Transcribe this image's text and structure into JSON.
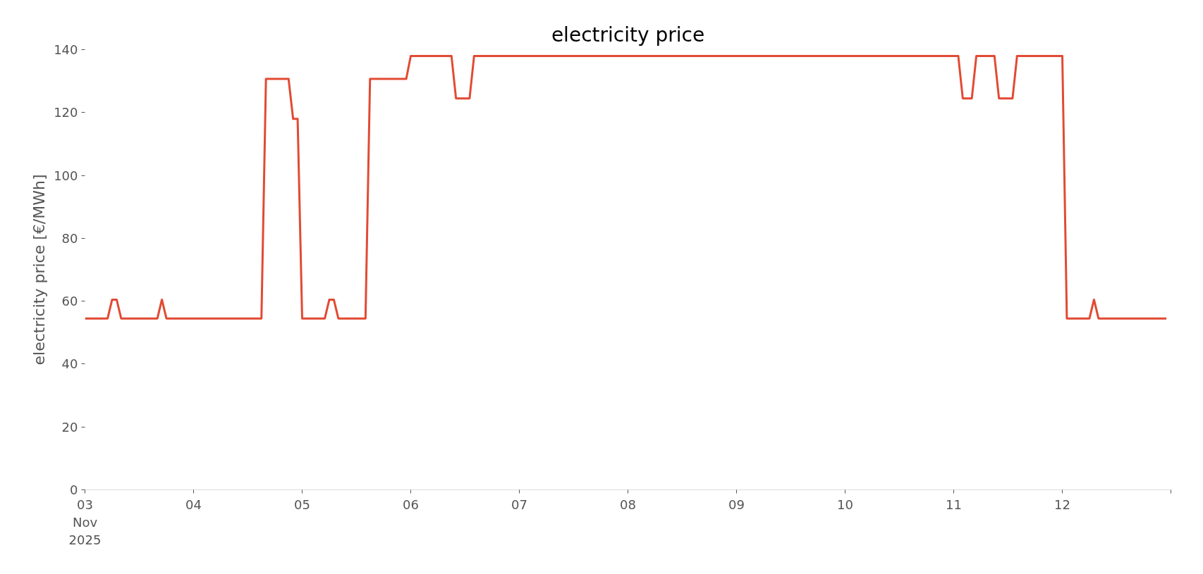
{
  "chart_data": {
    "type": "line",
    "title": "electricity price",
    "ylabel": "electricity price [€/MWh]",
    "x": [
      "2025-11-03T00:00",
      "2025-11-03T05:00",
      "2025-11-03T06:00",
      "2025-11-03T07:00",
      "2025-11-03T08:00",
      "2025-11-03T16:00",
      "2025-11-03T17:00",
      "2025-11-03T18:00",
      "2025-11-04T15:00",
      "2025-11-04T16:00",
      "2025-11-04T21:00",
      "2025-11-04T22:00",
      "2025-11-04T23:00",
      "2025-11-05T00:00",
      "2025-11-05T05:00",
      "2025-11-05T06:00",
      "2025-11-05T07:00",
      "2025-11-05T08:00",
      "2025-11-05T14:00",
      "2025-11-05T15:00",
      "2025-11-05T23:00",
      "2025-11-06T00:00",
      "2025-11-06T09:00",
      "2025-11-06T10:00",
      "2025-11-06T13:00",
      "2025-11-06T14:00",
      "2025-11-11T01:00",
      "2025-11-11T02:00",
      "2025-11-11T04:00",
      "2025-11-11T05:00",
      "2025-11-11T09:00",
      "2025-11-11T10:00",
      "2025-11-11T13:00",
      "2025-11-11T14:00",
      "2025-11-12T00:00",
      "2025-11-12T01:00",
      "2025-11-12T06:00",
      "2025-11-12T07:00",
      "2025-11-12T08:00",
      "2025-11-12T23:00"
    ],
    "series": [
      {
        "color": "#e24a33",
        "values": [
          54.5,
          54.5,
          60.5,
          60.5,
          54.5,
          54.5,
          60.5,
          54.5,
          54.5,
          130.7,
          130.7,
          118,
          118,
          54.5,
          54.5,
          60.5,
          60.5,
          54.5,
          54.5,
          130.7,
          130.7,
          138,
          138,
          124.5,
          124.5,
          138,
          138,
          124.5,
          124.5,
          138,
          138,
          124.5,
          124.5,
          138,
          138,
          54.5,
          54.5,
          60.5,
          54.5,
          54.5
        ]
      }
    ],
    "xlim": [
      "2025-11-03T00:00",
      "2025-11-13T00:00"
    ],
    "xticks": [
      {
        "value": "2025-11-03",
        "label": "03\nNov\n2025"
      },
      {
        "value": "2025-11-04",
        "label": "04"
      },
      {
        "value": "2025-11-05",
        "label": "05"
      },
      {
        "value": "2025-11-06",
        "label": "06"
      },
      {
        "value": "2025-11-07",
        "label": "07"
      },
      {
        "value": "2025-11-08",
        "label": "08"
      },
      {
        "value": "2025-11-09",
        "label": "09"
      },
      {
        "value": "2025-11-10",
        "label": "10"
      },
      {
        "value": "2025-11-11",
        "label": "11"
      },
      {
        "value": "2025-11-12",
        "label": "12"
      },
      {
        "value": "2025-11-13",
        "label": null
      }
    ],
    "ylim": [
      0,
      140
    ],
    "yticks": [
      0,
      20,
      40,
      60,
      80,
      100,
      120,
      140
    ],
    "grid": false,
    "marker": "none",
    "line_style": "solid"
  }
}
